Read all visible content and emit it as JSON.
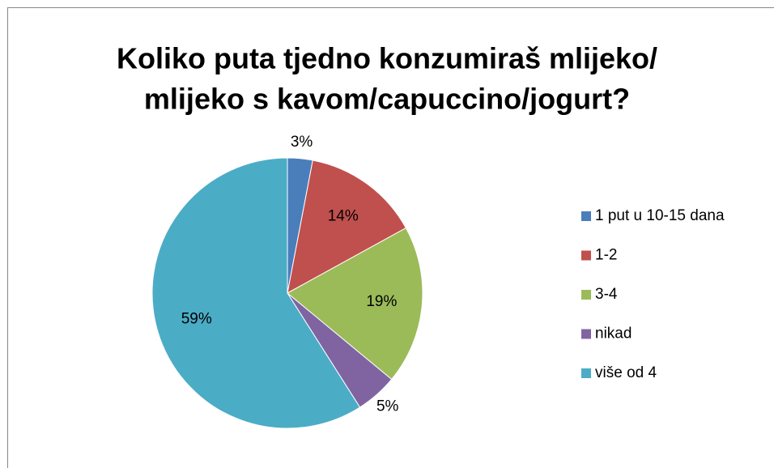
{
  "chart_data": {
    "type": "pie",
    "title": [
      "Koliko puta tjedno konzumiraš mlijeko/",
      "mlijeko s kavom/capuccino/jogurt?"
    ],
    "categories": [
      "1 put u 10-15 dana",
      "1-2",
      "3-4",
      "nikad",
      "više od 4"
    ],
    "values": [
      3,
      14,
      19,
      5,
      59
    ],
    "value_labels": [
      "3%",
      "14%",
      "19%",
      "5%",
      "59%"
    ],
    "colors": [
      "#4a7ebb",
      "#c0504d",
      "#9bbb59",
      "#8064a2",
      "#4bacc6"
    ],
    "legend": "right"
  }
}
